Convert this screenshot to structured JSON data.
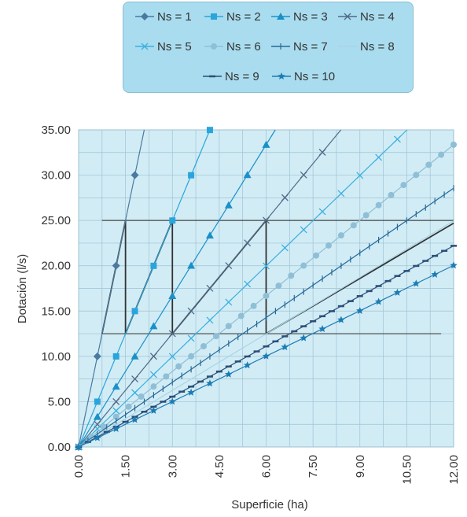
{
  "chart_data": {
    "type": "line",
    "xlabel": "Superficie (ha)",
    "ylabel": "Dotación (l/s)",
    "xlim": [
      0,
      12
    ],
    "ylim": [
      0,
      35
    ],
    "x_ticks": [
      "0.00",
      "1.50",
      "3.00",
      "4.50",
      "6.00",
      "7.50",
      "9.00",
      "10.50",
      "12.00"
    ],
    "y_ticks": [
      "0.00",
      "5.00",
      "10.00",
      "15.00",
      "20.00",
      "25.00",
      "30.00",
      "35.00"
    ],
    "grid": true,
    "legend_position": "top-center",
    "background_color": "#d2ecf5",
    "series": [
      {
        "name": "Ns = 1",
        "slope": 16.67,
        "marker": "diamond",
        "color": "#4a7aa0",
        "step": 0.6
      },
      {
        "name": "Ns = 2",
        "slope": 8.33,
        "marker": "square",
        "color": "#2aa5dc",
        "step": 0.6
      },
      {
        "name": "Ns = 3",
        "slope": 5.56,
        "marker": "triangle",
        "color": "#1a90c8",
        "step": 0.6
      },
      {
        "name": "Ns = 4",
        "slope": 4.17,
        "marker": "x",
        "color": "#4f6a88",
        "step": 0.6
      },
      {
        "name": "Ns = 5",
        "slope": 3.33,
        "marker": "x",
        "color": "#3cb0e0",
        "step": 0.6
      },
      {
        "name": "Ns = 6",
        "slope": 2.78,
        "marker": "circle",
        "color": "#8fbfd6",
        "step": 0.4
      },
      {
        "name": "Ns = 7",
        "slope": 2.38,
        "marker": "plus",
        "color": "#256a98",
        "step": 0.3
      },
      {
        "name": "Ns = 8",
        "slope": 2.08,
        "marker": "none",
        "color": "#a8d4e6",
        "step": 0.6
      },
      {
        "name": "Ns = 9",
        "slope": 1.85,
        "marker": "dash",
        "color": "#2b4f78",
        "step": 0.3
      },
      {
        "name": "Ns = 10",
        "slope": 1.67,
        "marker": "star",
        "color": "#1c7cb4",
        "step": 0.6
      }
    ],
    "reference_lines": [
      {
        "type": "horizontal",
        "y": 25.0,
        "x_from": 0.75,
        "x_to": 12
      },
      {
        "type": "horizontal",
        "y": 12.5,
        "x_from": 0.75,
        "x_to": 11.6
      }
    ],
    "sawtooth": {
      "color": "#333333",
      "points": [
        [
          0.75,
          12.5
        ],
        [
          1.5,
          25
        ],
        [
          1.5,
          12.5
        ],
        [
          3.0,
          25
        ],
        [
          3.0,
          12.5
        ],
        [
          6.0,
          25
        ],
        [
          6.0,
          12.5
        ],
        [
          12.0,
          24.7
        ]
      ]
    }
  }
}
